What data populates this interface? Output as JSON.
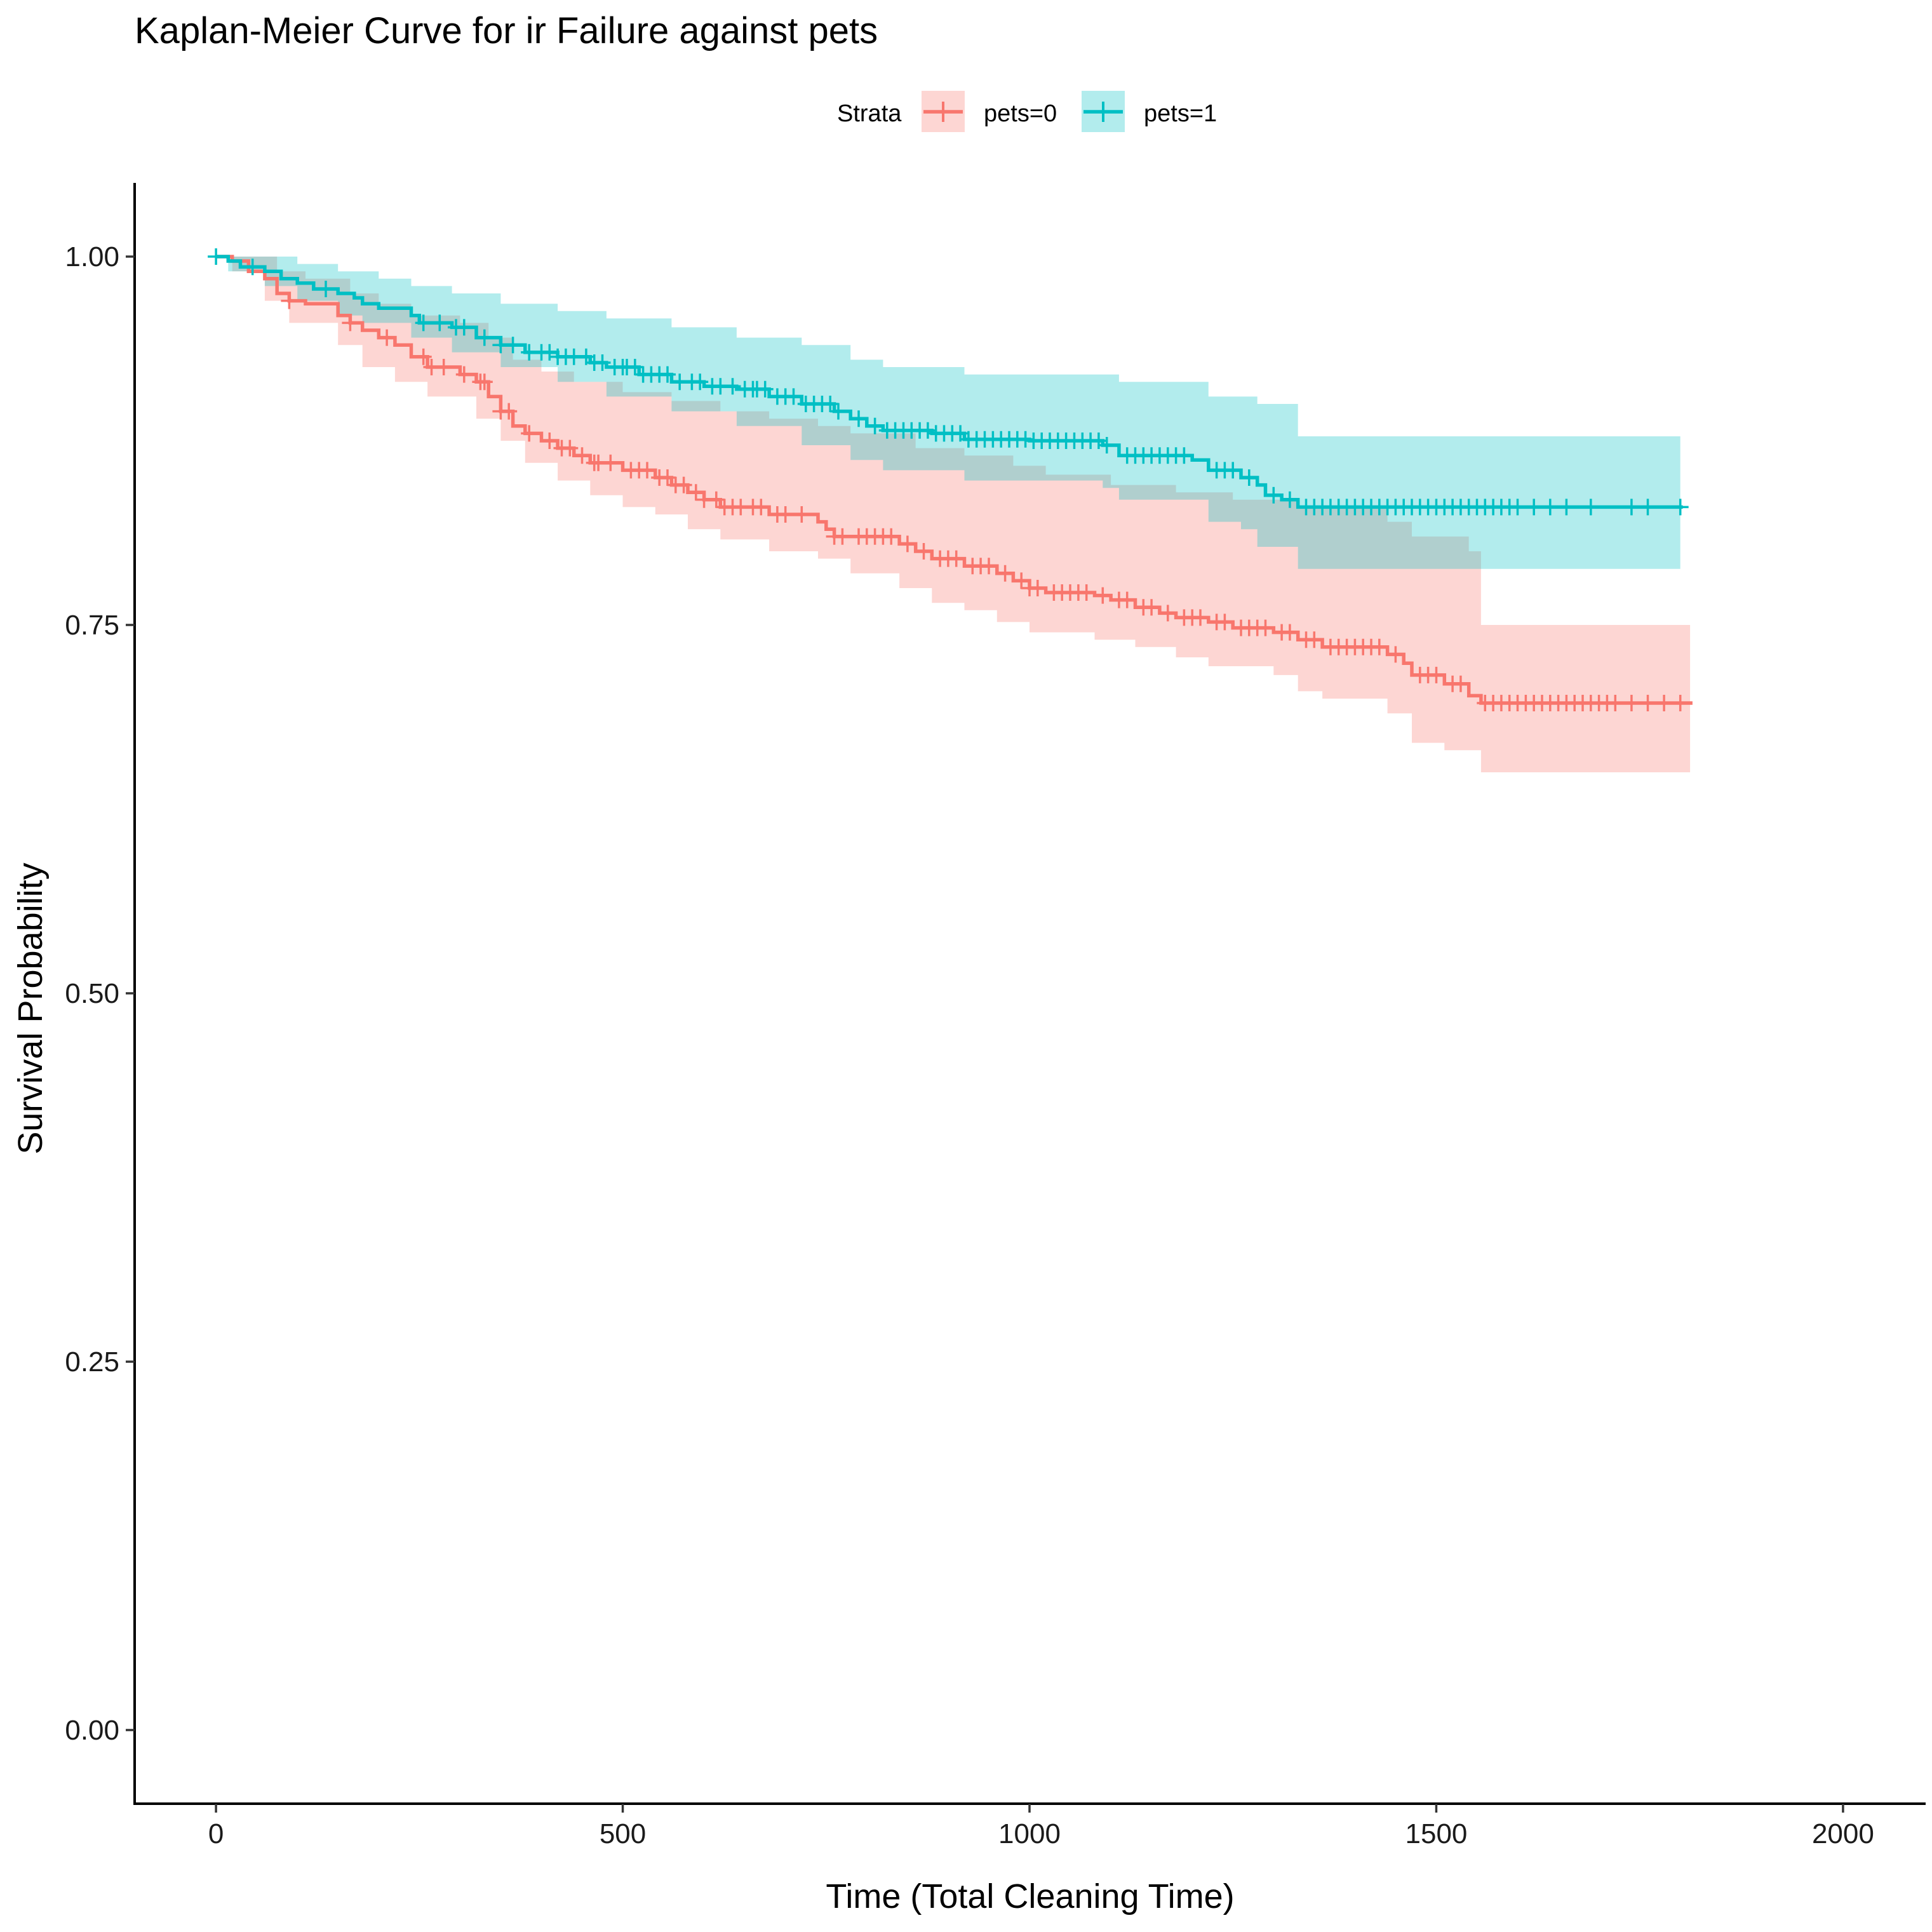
{
  "chart_data": {
    "type": "line",
    "subtype": "kaplan-meier step curve with confidence bands and censor marks",
    "title": "Kaplan-Meier Curve for ir Failure against pets",
    "xlabel": "Time (Total Cleaning Time)",
    "ylabel": "Survival Probability",
    "xlim": [
      -100,
      2100
    ],
    "ylim": [
      -0.05,
      1.05
    ],
    "x_ticks": [
      0,
      500,
      1000,
      1500,
      2000
    ],
    "x_tick_labels": [
      "0",
      "500",
      "1000",
      "1500",
      "2000"
    ],
    "y_ticks": [
      0,
      0.25,
      0.5,
      0.75,
      1.0
    ],
    "y_tick_labels": [
      "0.00",
      "0.25",
      "0.50",
      "0.75",
      "1.00"
    ],
    "grid": false,
    "legend": {
      "title": "Strata",
      "position": "top"
    },
    "series": [
      {
        "name": "pets=0",
        "color": "#F8766D",
        "band_color": "#F8766D",
        "steps": [
          [
            0,
            1.0
          ],
          [
            20,
            0.997
          ],
          [
            40,
            0.99
          ],
          [
            60,
            0.985
          ],
          [
            75,
            0.975
          ],
          [
            90,
            0.97
          ],
          [
            110,
            0.968
          ],
          [
            150,
            0.96
          ],
          [
            165,
            0.955
          ],
          [
            180,
            0.95
          ],
          [
            200,
            0.945
          ],
          [
            220,
            0.94
          ],
          [
            240,
            0.932
          ],
          [
            260,
            0.925
          ],
          [
            300,
            0.92
          ],
          [
            320,
            0.915
          ],
          [
            335,
            0.905
          ],
          [
            350,
            0.895
          ],
          [
            365,
            0.885
          ],
          [
            380,
            0.88
          ],
          [
            400,
            0.875
          ],
          [
            420,
            0.87
          ],
          [
            440,
            0.865
          ],
          [
            460,
            0.86
          ],
          [
            500,
            0.855
          ],
          [
            540,
            0.85
          ],
          [
            560,
            0.845
          ],
          [
            580,
            0.84
          ],
          [
            600,
            0.835
          ],
          [
            620,
            0.83
          ],
          [
            680,
            0.825
          ],
          [
            740,
            0.82
          ],
          [
            750,
            0.815
          ],
          [
            760,
            0.81
          ],
          [
            780,
            0.81
          ],
          [
            840,
            0.805
          ],
          [
            860,
            0.8
          ],
          [
            880,
            0.795
          ],
          [
            920,
            0.79
          ],
          [
            960,
            0.785
          ],
          [
            980,
            0.78
          ],
          [
            1000,
            0.775
          ],
          [
            1020,
            0.772
          ],
          [
            1080,
            0.77
          ],
          [
            1100,
            0.767
          ],
          [
            1130,
            0.762
          ],
          [
            1160,
            0.758
          ],
          [
            1180,
            0.755
          ],
          [
            1220,
            0.752
          ],
          [
            1250,
            0.748
          ],
          [
            1300,
            0.745
          ],
          [
            1330,
            0.74
          ],
          [
            1360,
            0.735
          ],
          [
            1440,
            0.73
          ],
          [
            1460,
            0.724
          ],
          [
            1470,
            0.716
          ],
          [
            1510,
            0.71
          ],
          [
            1540,
            0.702
          ],
          [
            1555,
            0.697
          ],
          [
            1815,
            0.697
          ]
        ],
        "upper": [
          [
            0,
            1.0
          ],
          [
            60,
            1.0
          ],
          [
            75,
            0.99
          ],
          [
            110,
            0.985
          ],
          [
            165,
            0.975
          ],
          [
            200,
            0.968
          ],
          [
            240,
            0.96
          ],
          [
            300,
            0.955
          ],
          [
            335,
            0.945
          ],
          [
            365,
            0.93
          ],
          [
            400,
            0.922
          ],
          [
            440,
            0.915
          ],
          [
            500,
            0.908
          ],
          [
            560,
            0.902
          ],
          [
            620,
            0.895
          ],
          [
            680,
            0.89
          ],
          [
            740,
            0.885
          ],
          [
            780,
            0.88
          ],
          [
            860,
            0.87
          ],
          [
            920,
            0.865
          ],
          [
            980,
            0.858
          ],
          [
            1020,
            0.852
          ],
          [
            1100,
            0.845
          ],
          [
            1180,
            0.84
          ],
          [
            1250,
            0.835
          ],
          [
            1330,
            0.83
          ],
          [
            1440,
            0.82
          ],
          [
            1470,
            0.81
          ],
          [
            1540,
            0.8
          ],
          [
            1555,
            0.75
          ],
          [
            1812,
            0.75
          ]
        ],
        "lower": [
          [
            0,
            1.0
          ],
          [
            20,
            0.99
          ],
          [
            60,
            0.97
          ],
          [
            90,
            0.955
          ],
          [
            150,
            0.94
          ],
          [
            180,
            0.925
          ],
          [
            220,
            0.915
          ],
          [
            260,
            0.905
          ],
          [
            320,
            0.89
          ],
          [
            350,
            0.875
          ],
          [
            380,
            0.86
          ],
          [
            420,
            0.848
          ],
          [
            460,
            0.838
          ],
          [
            500,
            0.83
          ],
          [
            540,
            0.825
          ],
          [
            580,
            0.815
          ],
          [
            620,
            0.808
          ],
          [
            680,
            0.8
          ],
          [
            740,
            0.795
          ],
          [
            780,
            0.785
          ],
          [
            840,
            0.775
          ],
          [
            880,
            0.765
          ],
          [
            920,
            0.76
          ],
          [
            960,
            0.752
          ],
          [
            1000,
            0.745
          ],
          [
            1080,
            0.74
          ],
          [
            1130,
            0.735
          ],
          [
            1180,
            0.728
          ],
          [
            1220,
            0.722
          ],
          [
            1300,
            0.716
          ],
          [
            1330,
            0.705
          ],
          [
            1360,
            0.7
          ],
          [
            1440,
            0.69
          ],
          [
            1470,
            0.67
          ],
          [
            1510,
            0.665
          ],
          [
            1555,
            0.65
          ],
          [
            1812,
            0.65
          ]
        ],
        "censor_times": [
          90,
          165,
          210,
          255,
          265,
          280,
          305,
          325,
          330,
          350,
          360,
          385,
          410,
          425,
          435,
          450,
          465,
          470,
          485,
          510,
          520,
          530,
          545,
          555,
          565,
          575,
          590,
          600,
          615,
          625,
          635,
          645,
          660,
          670,
          690,
          700,
          720,
          760,
          770,
          790,
          800,
          810,
          820,
          830,
          850,
          870,
          890,
          900,
          910,
          930,
          940,
          950,
          970,
          990,
          1000,
          1010,
          1030,
          1040,
          1050,
          1060,
          1070,
          1090,
          1110,
          1120,
          1140,
          1150,
          1170,
          1190,
          1200,
          1210,
          1230,
          1240,
          1260,
          1270,
          1280,
          1290,
          1310,
          1320,
          1340,
          1350,
          1370,
          1380,
          1390,
          1400,
          1410,
          1420,
          1430,
          1450,
          1480,
          1490,
          1500,
          1520,
          1530,
          1560,
          1570,
          1580,
          1590,
          1600,
          1610,
          1620,
          1630,
          1640,
          1650,
          1660,
          1670,
          1680,
          1690,
          1700,
          1710,
          1720,
          1740,
          1760,
          1780,
          1800
        ]
      },
      {
        "name": "pets=1",
        "color": "#00BFC4",
        "band_color": "#00BFC4",
        "steps": [
          [
            0,
            1.0
          ],
          [
            15,
            0.997
          ],
          [
            30,
            0.993
          ],
          [
            60,
            0.99
          ],
          [
            80,
            0.985
          ],
          [
            100,
            0.982
          ],
          [
            120,
            0.978
          ],
          [
            150,
            0.975
          ],
          [
            170,
            0.972
          ],
          [
            180,
            0.968
          ],
          [
            200,
            0.965
          ],
          [
            240,
            0.96
          ],
          [
            250,
            0.955
          ],
          [
            290,
            0.952
          ],
          [
            320,
            0.945
          ],
          [
            350,
            0.94
          ],
          [
            380,
            0.935
          ],
          [
            420,
            0.932
          ],
          [
            460,
            0.928
          ],
          [
            480,
            0.925
          ],
          [
            520,
            0.92
          ],
          [
            560,
            0.915
          ],
          [
            600,
            0.912
          ],
          [
            640,
            0.91
          ],
          [
            680,
            0.905
          ],
          [
            720,
            0.9
          ],
          [
            760,
            0.895
          ],
          [
            780,
            0.89
          ],
          [
            800,
            0.885
          ],
          [
            820,
            0.882
          ],
          [
            880,
            0.88
          ],
          [
            920,
            0.876
          ],
          [
            1000,
            0.875
          ],
          [
            1090,
            0.872
          ],
          [
            1110,
            0.865
          ],
          [
            1200,
            0.862
          ],
          [
            1220,
            0.855
          ],
          [
            1260,
            0.85
          ],
          [
            1280,
            0.845
          ],
          [
            1290,
            0.838
          ],
          [
            1310,
            0.835
          ],
          [
            1330,
            0.83
          ],
          [
            1803,
            0.83
          ]
        ],
        "upper": [
          [
            0,
            1.0
          ],
          [
            80,
            1.0
          ],
          [
            100,
            0.995
          ],
          [
            150,
            0.99
          ],
          [
            200,
            0.985
          ],
          [
            240,
            0.98
          ],
          [
            290,
            0.975
          ],
          [
            350,
            0.968
          ],
          [
            420,
            0.963
          ],
          [
            480,
            0.958
          ],
          [
            560,
            0.952
          ],
          [
            640,
            0.945
          ],
          [
            720,
            0.94
          ],
          [
            780,
            0.93
          ],
          [
            820,
            0.925
          ],
          [
            920,
            0.92
          ],
          [
            1110,
            0.915
          ],
          [
            1220,
            0.905
          ],
          [
            1280,
            0.9
          ],
          [
            1330,
            0.878
          ],
          [
            1800,
            0.878
          ]
        ],
        "lower": [
          [
            0,
            1.0
          ],
          [
            15,
            0.99
          ],
          [
            60,
            0.98
          ],
          [
            100,
            0.97
          ],
          [
            150,
            0.96
          ],
          [
            180,
            0.955
          ],
          [
            240,
            0.945
          ],
          [
            290,
            0.935
          ],
          [
            350,
            0.925
          ],
          [
            420,
            0.915
          ],
          [
            480,
            0.905
          ],
          [
            560,
            0.895
          ],
          [
            640,
            0.885
          ],
          [
            720,
            0.872
          ],
          [
            780,
            0.862
          ],
          [
            820,
            0.855
          ],
          [
            920,
            0.848
          ],
          [
            1090,
            0.843
          ],
          [
            1110,
            0.835
          ],
          [
            1220,
            0.82
          ],
          [
            1260,
            0.815
          ],
          [
            1280,
            0.803
          ],
          [
            1330,
            0.788
          ],
          [
            1800,
            0.788
          ]
        ],
        "censor_times": [
          0,
          45,
          135,
          255,
          275,
          295,
          305,
          330,
          350,
          365,
          385,
          400,
          410,
          420,
          430,
          440,
          455,
          465,
          475,
          490,
          500,
          505,
          515,
          525,
          535,
          545,
          555,
          570,
          585,
          595,
          610,
          620,
          635,
          650,
          660,
          665,
          675,
          690,
          700,
          710,
          725,
          735,
          745,
          755,
          765,
          790,
          810,
          825,
          835,
          845,
          855,
          865,
          875,
          885,
          895,
          905,
          915,
          925,
          935,
          945,
          955,
          965,
          975,
          985,
          995,
          1005,
          1015,
          1025,
          1035,
          1045,
          1055,
          1065,
          1075,
          1085,
          1095,
          1120,
          1130,
          1140,
          1150,
          1160,
          1170,
          1180,
          1190,
          1230,
          1240,
          1250,
          1270,
          1300,
          1320,
          1340,
          1350,
          1360,
          1370,
          1380,
          1390,
          1400,
          1410,
          1420,
          1430,
          1440,
          1450,
          1460,
          1470,
          1480,
          1490,
          1500,
          1510,
          1520,
          1530,
          1540,
          1550,
          1560,
          1570,
          1580,
          1590,
          1600,
          1620,
          1640,
          1660,
          1690,
          1740,
          1760,
          1800
        ]
      }
    ]
  }
}
